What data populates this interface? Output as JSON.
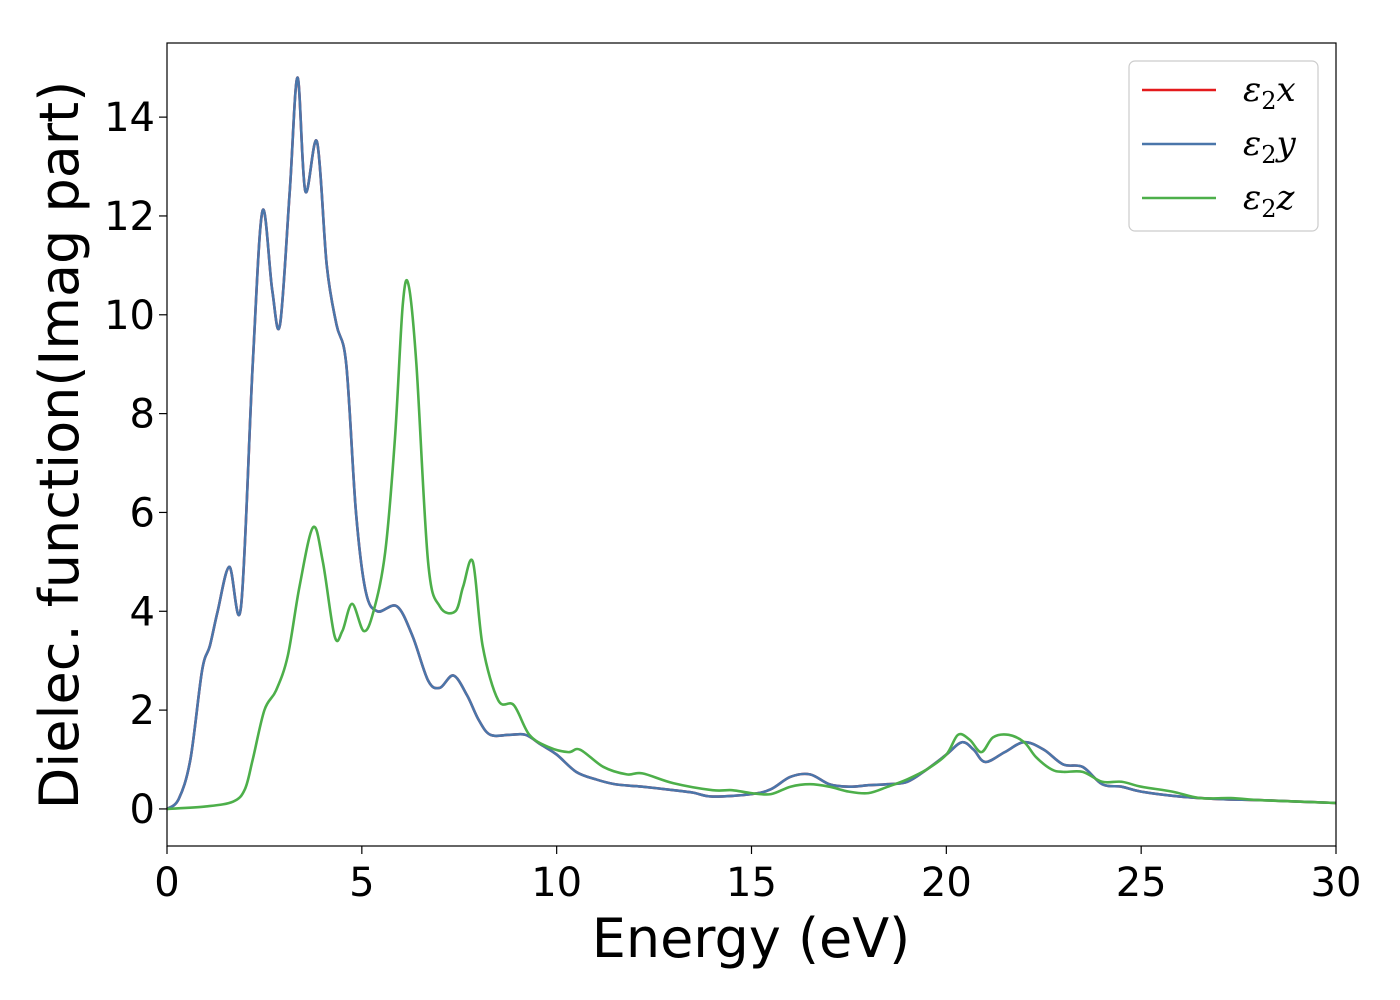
{
  "chart_data": {
    "type": "line",
    "title": "",
    "xlabel": "Energy (eV)",
    "ylabel": "Dielec. function(Imag part)",
    "xlim": [
      0,
      30
    ],
    "ylim": [
      -0.75,
      15.5
    ],
    "xticks": [
      0,
      5,
      10,
      15,
      20,
      25,
      30
    ],
    "yticks": [
      0,
      2,
      4,
      6,
      8,
      10,
      12,
      14
    ],
    "grid": false,
    "legend": "top-right",
    "series": [
      {
        "name": "ε₂x",
        "legend_base": "ε",
        "legend_sub": "2",
        "legend_var": "x",
        "color": "#e41a1c",
        "x": [
          0,
          0.3,
          0.6,
          0.9,
          1.1,
          1.3,
          1.6,
          1.9,
          2.2,
          2.45,
          2.7,
          2.9,
          3.15,
          3.35,
          3.55,
          3.85,
          4.1,
          4.35,
          4.6,
          4.85,
          5.1,
          5.4,
          5.9,
          6.3,
          6.7,
          7.0,
          7.35,
          7.7,
          8.0,
          8.3,
          8.8,
          9.2,
          9.6,
          10.0,
          10.5,
          11.0,
          11.5,
          12.2,
          13.0,
          13.5,
          14.0,
          15.0,
          15.5,
          16.0,
          16.5,
          17.0,
          17.5,
          18.0,
          18.5,
          19.0,
          19.5,
          20.0,
          20.4,
          20.7,
          21.0,
          21.5,
          22.0,
          22.5,
          23.0,
          23.5,
          24.0,
          24.5,
          25.0,
          26.0,
          27.0,
          28.0,
          29.0,
          30.0
        ],
        "values": [
          0,
          0.2,
          1.0,
          2.8,
          3.3,
          4.0,
          4.9,
          4.1,
          9.0,
          12.1,
          10.5,
          9.8,
          12.5,
          14.8,
          12.5,
          13.5,
          11.0,
          9.8,
          9.0,
          6.0,
          4.4,
          4.0,
          4.1,
          3.5,
          2.6,
          2.45,
          2.7,
          2.3,
          1.8,
          1.5,
          1.5,
          1.5,
          1.3,
          1.1,
          0.75,
          0.6,
          0.5,
          0.45,
          0.38,
          0.33,
          0.25,
          0.3,
          0.4,
          0.65,
          0.7,
          0.5,
          0.45,
          0.48,
          0.5,
          0.55,
          0.8,
          1.1,
          1.35,
          1.2,
          0.95,
          1.15,
          1.35,
          1.2,
          0.9,
          0.85,
          0.5,
          0.45,
          0.35,
          0.25,
          0.2,
          0.18,
          0.15,
          0.12
        ]
      },
      {
        "name": "ε₂y",
        "legend_base": "ε",
        "legend_sub": "2",
        "legend_var": "y",
        "color": "#4a76aa",
        "x": [
          0,
          0.3,
          0.6,
          0.9,
          1.1,
          1.3,
          1.6,
          1.9,
          2.2,
          2.45,
          2.7,
          2.9,
          3.15,
          3.35,
          3.55,
          3.85,
          4.1,
          4.35,
          4.6,
          4.85,
          5.1,
          5.4,
          5.9,
          6.3,
          6.7,
          7.0,
          7.35,
          7.7,
          8.0,
          8.3,
          8.8,
          9.2,
          9.6,
          10.0,
          10.5,
          11.0,
          11.5,
          12.2,
          13.0,
          13.5,
          14.0,
          15.0,
          15.5,
          16.0,
          16.5,
          17.0,
          17.5,
          18.0,
          18.5,
          19.0,
          19.5,
          20.0,
          20.4,
          20.7,
          21.0,
          21.5,
          22.0,
          22.5,
          23.0,
          23.5,
          24.0,
          24.5,
          25.0,
          26.0,
          27.0,
          28.0,
          29.0,
          30.0
        ],
        "values": [
          0,
          0.2,
          1.0,
          2.8,
          3.3,
          4.0,
          4.9,
          4.1,
          9.0,
          12.1,
          10.5,
          9.8,
          12.5,
          14.8,
          12.5,
          13.5,
          11.0,
          9.8,
          9.0,
          6.0,
          4.4,
          4.0,
          4.1,
          3.5,
          2.6,
          2.45,
          2.7,
          2.3,
          1.8,
          1.5,
          1.5,
          1.5,
          1.3,
          1.1,
          0.75,
          0.6,
          0.5,
          0.45,
          0.38,
          0.33,
          0.25,
          0.3,
          0.4,
          0.65,
          0.7,
          0.5,
          0.45,
          0.48,
          0.5,
          0.55,
          0.8,
          1.1,
          1.35,
          1.2,
          0.95,
          1.15,
          1.35,
          1.2,
          0.9,
          0.85,
          0.5,
          0.45,
          0.35,
          0.25,
          0.2,
          0.18,
          0.15,
          0.12
        ]
      },
      {
        "name": "ε₂z",
        "legend_base": "ε",
        "legend_sub": "2",
        "legend_var": "z",
        "color": "#4daf4a",
        "x": [
          0,
          1.0,
          1.7,
          2.0,
          2.2,
          2.5,
          2.8,
          3.1,
          3.4,
          3.75,
          4.0,
          4.3,
          4.5,
          4.75,
          5.05,
          5.3,
          5.6,
          5.85,
          6.05,
          6.2,
          6.4,
          6.7,
          7.0,
          7.4,
          7.6,
          7.85,
          8.1,
          8.5,
          8.9,
          9.3,
          9.8,
          10.3,
          10.6,
          11.2,
          11.8,
          12.2,
          13.0,
          14.0,
          14.5,
          15.0,
          15.5,
          16.0,
          16.5,
          17.0,
          17.5,
          18.0,
          18.5,
          19.0,
          19.5,
          20.0,
          20.3,
          20.6,
          20.9,
          21.2,
          21.6,
          22.0,
          22.3,
          22.7,
          23.0,
          23.5,
          24.0,
          24.5,
          25.0,
          25.8,
          26.5,
          27.3,
          28.0,
          29.0,
          30.0
        ],
        "values": [
          0,
          0.05,
          0.15,
          0.4,
          1.0,
          2.0,
          2.4,
          3.1,
          4.5,
          5.7,
          5.0,
          3.5,
          3.6,
          4.15,
          3.6,
          4.0,
          5.2,
          7.5,
          10.2,
          10.6,
          9.0,
          5.0,
          4.1,
          4.0,
          4.5,
          5.0,
          3.3,
          2.2,
          2.1,
          1.5,
          1.25,
          1.15,
          1.2,
          0.85,
          0.7,
          0.72,
          0.52,
          0.38,
          0.38,
          0.32,
          0.3,
          0.45,
          0.5,
          0.45,
          0.35,
          0.32,
          0.45,
          0.6,
          0.8,
          1.1,
          1.5,
          1.4,
          1.15,
          1.45,
          1.5,
          1.35,
          1.05,
          0.8,
          0.75,
          0.75,
          0.55,
          0.55,
          0.45,
          0.35,
          0.22,
          0.22,
          0.18,
          0.15,
          0.12
        ]
      }
    ]
  }
}
